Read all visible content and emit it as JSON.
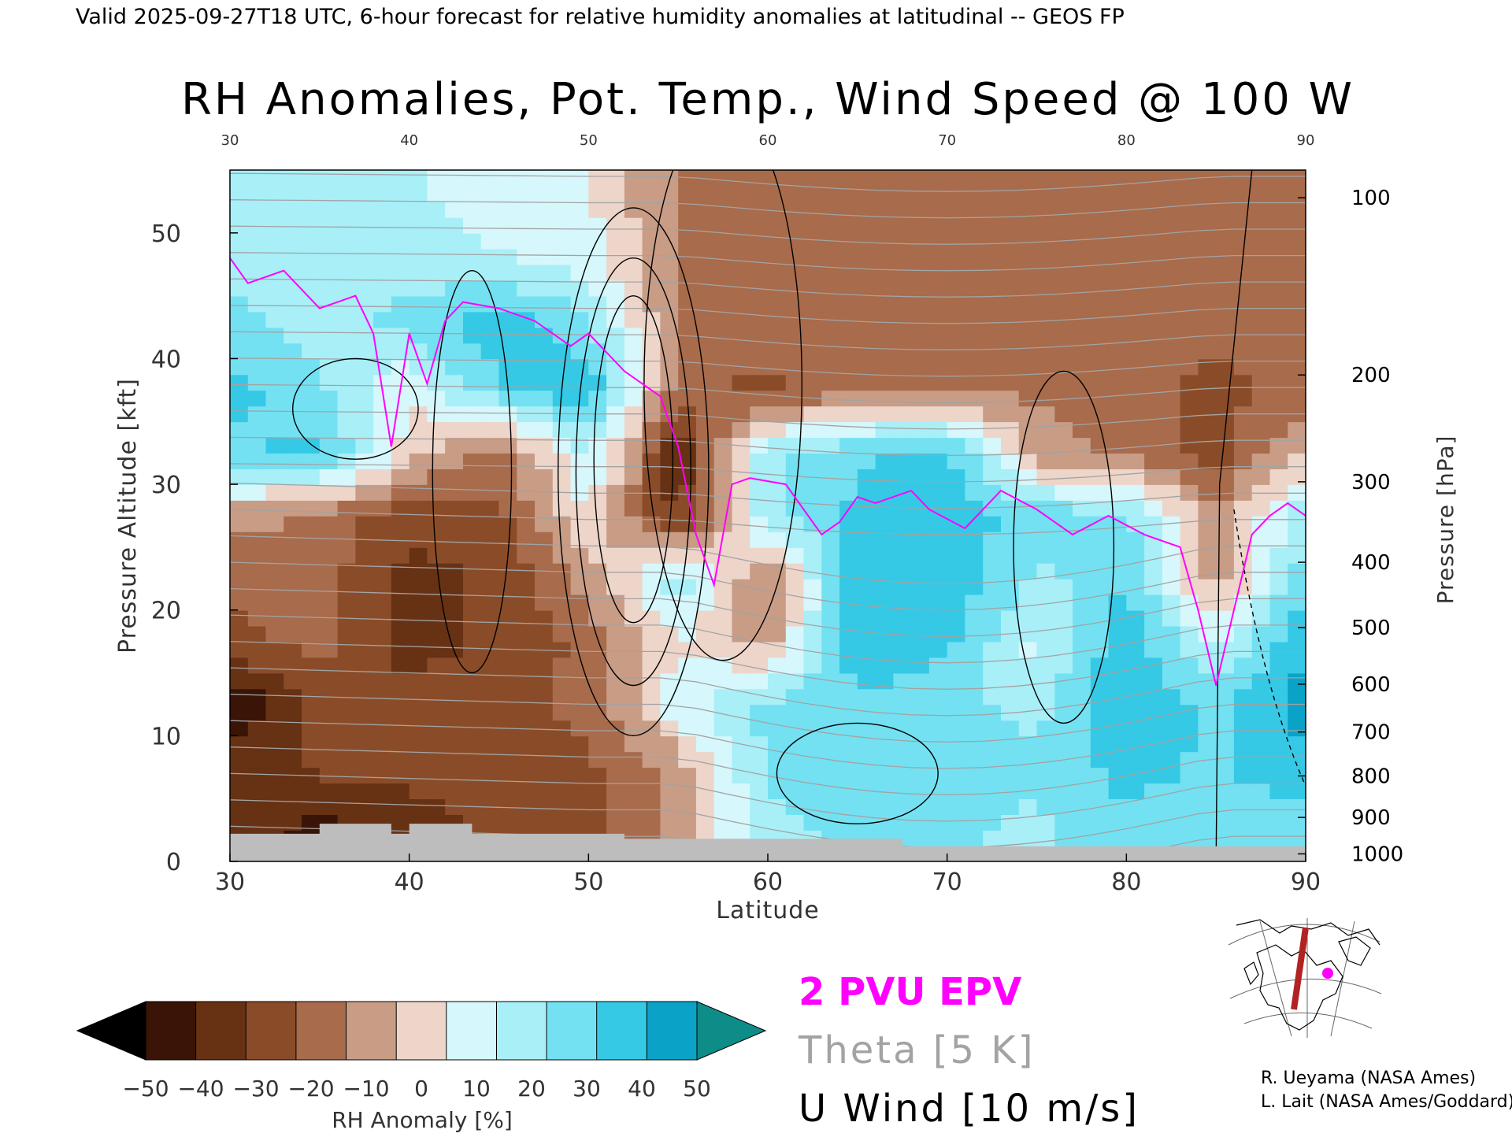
{
  "header": {
    "valid_line": "Valid 2025-09-27T18 UTC, 6-hour forecast for relative humidity anomalies at latitudinal -- GEOS FP"
  },
  "chart_data": {
    "type": "heatmap",
    "title": "RH Anomalies, Pot. Temp., Wind Speed @ 100 W",
    "xlabel": "Latitude",
    "ylabel": "Pressure Altitude [kft]",
    "y2label": "Pressure [hPa]",
    "xlim": [
      30,
      90
    ],
    "ylim": [
      0,
      55
    ],
    "x_ticks": [
      30,
      40,
      50,
      60,
      70,
      80,
      90
    ],
    "x_tick_labels": [
      "30",
      "40",
      "50",
      "60",
      "70",
      "80",
      "90"
    ],
    "top_tick_labels": [
      "30",
      "40",
      "50",
      "60",
      "70",
      "80",
      "90"
    ],
    "y_ticks": [
      0,
      10,
      20,
      30,
      40,
      50
    ],
    "y_tick_labels": [
      "0",
      "10",
      "20",
      "30",
      "40",
      "50"
    ],
    "pressure_ticks": [
      {
        "label": "100",
        "kft": 52.8
      },
      {
        "label": "200",
        "kft": 38.7
      },
      {
        "label": "300",
        "kft": 30.2
      },
      {
        "label": "400",
        "kft": 23.8
      },
      {
        "label": "500",
        "kft": 18.6
      },
      {
        "label": "600",
        "kft": 14.1
      },
      {
        "label": "700",
        "kft": 10.3
      },
      {
        "label": "800",
        "kft": 6.8
      },
      {
        "label": "900",
        "kft": 3.5
      },
      {
        "label": "1000",
        "kft": 0.6
      }
    ],
    "rh_grid": {
      "latitudes": [
        30,
        35,
        40,
        45,
        50,
        55,
        60,
        65,
        70,
        75,
        80,
        85,
        90
      ],
      "altitudes_kft": [
        2.5,
        7.5,
        12.5,
        17.5,
        22.5,
        27.5,
        32.5,
        37.5,
        42.5,
        47.5,
        52.5
      ],
      "anomaly_rows": [
        [
          -35,
          -45,
          -35,
          -30,
          -25,
          -10,
          20,
          25,
          25,
          20,
          30,
          25,
          25
        ],
        [
          -35,
          -30,
          -30,
          -30,
          -25,
          -10,
          25,
          30,
          30,
          25,
          35,
          30,
          40
        ],
        [
          -50,
          -30,
          -30,
          -25,
          -20,
          10,
          25,
          30,
          25,
          20,
          40,
          30,
          45
        ],
        [
          -25,
          -20,
          -35,
          -30,
          -20,
          5,
          -10,
          40,
          35,
          10,
          40,
          10,
          40
        ],
        [
          -20,
          -20,
          -35,
          -30,
          -10,
          20,
          -15,
          40,
          40,
          20,
          30,
          -10,
          30
        ],
        [
          -10,
          -15,
          -30,
          -25,
          5,
          -35,
          20,
          35,
          35,
          30,
          25,
          -10,
          20
        ],
        [
          30,
          35,
          0,
          -20,
          15,
          -40,
          20,
          30,
          35,
          -10,
          -15,
          -30,
          0
        ],
        [
          35,
          25,
          5,
          30,
          40,
          -20,
          -25,
          -15,
          -15,
          -15,
          -20,
          -25,
          -20
        ],
        [
          25,
          20,
          25,
          40,
          25,
          -15,
          -20,
          -20,
          -20,
          -20,
          -20,
          -20,
          -20
        ],
        [
          20,
          20,
          20,
          15,
          10,
          -15,
          -20,
          -20,
          -20,
          -20,
          -20,
          -20,
          -20
        ],
        [
          15,
          20,
          15,
          10,
          5,
          -15,
          -20,
          -20,
          -20,
          -20,
          -20,
          -20,
          -20
        ]
      ]
    },
    "epv_2pvu": {
      "lat": [
        30,
        31,
        33,
        35,
        37,
        38,
        39,
        40,
        41,
        42,
        43,
        45,
        47,
        49,
        50,
        52,
        54,
        55,
        56,
        57,
        58,
        59,
        61,
        62,
        63,
        64,
        65,
        66,
        68,
        69,
        71,
        73,
        75,
        77,
        79,
        81,
        83,
        84,
        85,
        86,
        87,
        88,
        89,
        90
      ],
      "kft": [
        48,
        46,
        47,
        44,
        45,
        42,
        33,
        42,
        38,
        43,
        44.5,
        44,
        43,
        41,
        42,
        39,
        37,
        33,
        26,
        22,
        30,
        30.5,
        30,
        28,
        26,
        27,
        29,
        28.5,
        29.5,
        28,
        26.5,
        29.5,
        28,
        26,
        27.5,
        26,
        25,
        20,
        14,
        20,
        26,
        27.5,
        28.5,
        27.5
      ]
    },
    "series": [
      {
        "name": "2 PVU EPV",
        "color": "#ff00ff"
      },
      {
        "name": "Theta [5 K]",
        "color": "#a3a3a3"
      },
      {
        "name": "U Wind [10 m/s]",
        "color": "#000000"
      }
    ],
    "colorbar": {
      "label": "RH Anomaly [%]",
      "tick_values": [
        -50,
        -40,
        -30,
        -20,
        -10,
        0,
        10,
        20,
        30,
        40,
        50
      ],
      "tick_labels": [
        "−50",
        "−40",
        "−30",
        "−20",
        "−10",
        "0",
        "10",
        "20",
        "30",
        "40",
        "50"
      ],
      "colors": [
        "#391407",
        "#673114",
        "#8a4c28",
        "#a86b4b",
        "#c89c85",
        "#eed5c9",
        "#d6f7fb",
        "#a8eff8",
        "#73e1f2",
        "#35c9e6",
        "#0aa3c7"
      ],
      "under_color": "#000000",
      "over_color": "#0e8c87"
    },
    "grid": false
  },
  "inset_map": {
    "name": "transect-location-map",
    "track_color": "#b22222",
    "marker_color": "#ff00ff"
  },
  "credits": {
    "line1": "R. Ueyama (NASA Ames)",
    "line2": "L. Lait (NASA Ames/Goddard)"
  }
}
